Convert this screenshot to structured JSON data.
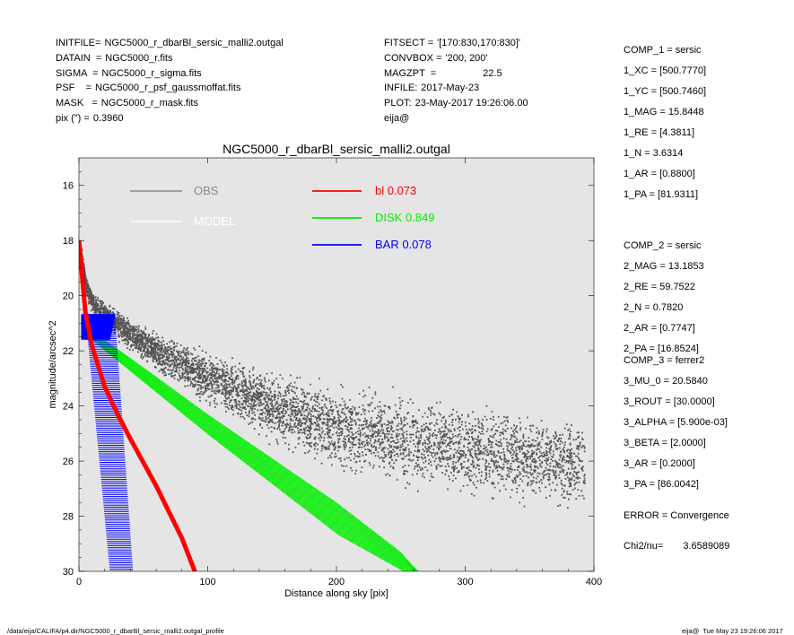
{
  "header_left": [
    {
      "key": "INITFILE=",
      "val": "NGC5000_r_dbarBl_sersic_malli2.outgal"
    },
    {
      "key": "DATAIN  =",
      "val": "NGC5000_r.fits"
    },
    {
      "key": "SIGMA  =",
      "val": "NGC5000_r_sigma.fits"
    },
    {
      "key": "PSF    =",
      "val": "NGC5000_r_psf_gaussmoffat.fits"
    },
    {
      "key": "MASK   =",
      "val": "NGC5000_r_mask.fits"
    },
    {
      "key": "pix (\") =",
      "val": "0.3960"
    }
  ],
  "header_mid": [
    {
      "key": "FITSECT =",
      "val": "'[170:830,170:830]'"
    },
    {
      "key": "CONVBOX =",
      "val": "'200, 200'"
    },
    {
      "key": "MAGZPT  =",
      "val": "22.5"
    },
    {
      "key": "INFILE:",
      "val": "2017-May-23"
    },
    {
      "key": "PLOT:",
      "val": "23-May-2017 19:26:06.00"
    },
    {
      "key": "",
      "val": "eija@"
    }
  ],
  "params": [
    {
      "key": "COMP_1",
      "val": "sersic"
    },
    {
      "key": "1_XC",
      "val": "[500.7770]"
    },
    {
      "key": "1_YC",
      "val": "[500.7460]"
    },
    {
      "key": "1_MAG",
      "val": "15.8448"
    },
    {
      "key": "1_RE",
      "val": "[4.3811]"
    },
    {
      "key": "1_N",
      "val": "3.6314"
    },
    {
      "key": "1_AR",
      "val": "[0.8800]"
    },
    {
      "key": "1_PA",
      "val": "[81.9311]"
    },
    {
      "key": "COMP_2",
      "val": "sersic"
    },
    {
      "key": "2_MAG",
      "val": "13.1853"
    },
    {
      "key": "2_RE",
      "val": "59.7522"
    },
    {
      "key": "2_N",
      "val": "0.7820"
    },
    {
      "key": "2_AR",
      "val": "[0.7747]"
    },
    {
      "key": "2_PA",
      "val": "[16.8524]"
    },
    {
      "key": "COMP_3",
      "val": "ferrer2"
    },
    {
      "key": "3_MU_0",
      "val": "20.5840"
    },
    {
      "key": "3_ROUT",
      "val": "[30.0000]"
    },
    {
      "key": "3_ALPHA",
      "val": "[5.900e-03]"
    },
    {
      "key": "3_BETA",
      "val": "[2.0000]"
    },
    {
      "key": "3_AR",
      "val": "[0.2000]"
    },
    {
      "key": "3_PA",
      "val": "[86.0042]"
    },
    {
      "key": "ERROR",
      "val": "Convergence"
    },
    {
      "key": "Chi2/nu=",
      "val": "3.6589089"
    }
  ],
  "footer": {
    "left": "/data/eija/CALIFA/p4.dir/NGC5000_r_dbarBl_sersic_malli2.outgal_profile",
    "right": "eija@  Tue May 23 19:26:06 2017"
  },
  "colors": {
    "obs": "#555555",
    "model": "#ffffff",
    "bl": "#ff0000",
    "disk": "#00ee00",
    "bar": "#0000ff",
    "bg": "#e5e5e5"
  },
  "chart_data": {
    "type": "scatter",
    "title": "NGC5000_r_dbarBl_sersic_malli2.outgal",
    "xlabel": "Distance along sky [pix]",
    "ylabel": "magnitude/arcsec^2",
    "xlim": [
      0,
      400
    ],
    "ylim": [
      30,
      15
    ],
    "y_inverted": true,
    "xticks": [
      0,
      100,
      200,
      300,
      400
    ],
    "yticks": [
      16,
      18,
      20,
      22,
      24,
      26,
      28,
      30
    ],
    "legend": [
      {
        "name": "OBS",
        "value": "",
        "color": "#777777"
      },
      {
        "name": "MODEL",
        "value": "",
        "color": "#ffffff"
      },
      {
        "name": "bl",
        "value": "0.073",
        "color": "#ff0000"
      },
      {
        "name": "DISK",
        "value": "0.849",
        "color": "#00ee00"
      },
      {
        "name": "BAR",
        "value": "0.078",
        "color": "#0000ff"
      }
    ],
    "series": [
      {
        "name": "OBS",
        "type": "scatter",
        "x": [
          1,
          5,
          10,
          15,
          20,
          30,
          40,
          60,
          80,
          100,
          120,
          150,
          180,
          200,
          250,
          300,
          350,
          390
        ],
        "y": [
          18.5,
          19.6,
          20.2,
          20.5,
          20.7,
          21.0,
          21.4,
          22.0,
          22.5,
          23.0,
          23.4,
          24.0,
          24.5,
          24.8,
          25.2,
          25.6,
          25.9,
          26.1
        ]
      },
      {
        "name": "bl",
        "type": "band",
        "x": [
          0,
          5,
          10,
          20,
          30,
          40,
          60,
          80,
          90
        ],
        "y": [
          18.0,
          20.6,
          21.8,
          23.3,
          24.3,
          25.2,
          26.9,
          28.8,
          30.0
        ]
      },
      {
        "name": "DISK",
        "type": "band",
        "x": [
          8,
          50,
          100,
          150,
          200,
          250,
          263
        ],
        "y_upper": [
          21.2,
          22.6,
          24.3,
          25.9,
          27.5,
          29.3,
          30.0
        ],
        "y_lower": [
          21.6,
          23.2,
          25.1,
          26.9,
          28.7,
          30.0,
          30.0
        ]
      },
      {
        "name": "BAR",
        "type": "band",
        "x_inner": [
          5,
          10,
          15,
          20,
          24
        ],
        "x_outer": [
          28,
          30,
          34,
          38,
          42
        ],
        "y_top": 20.7,
        "y_bottom": 30.0
      }
    ]
  }
}
